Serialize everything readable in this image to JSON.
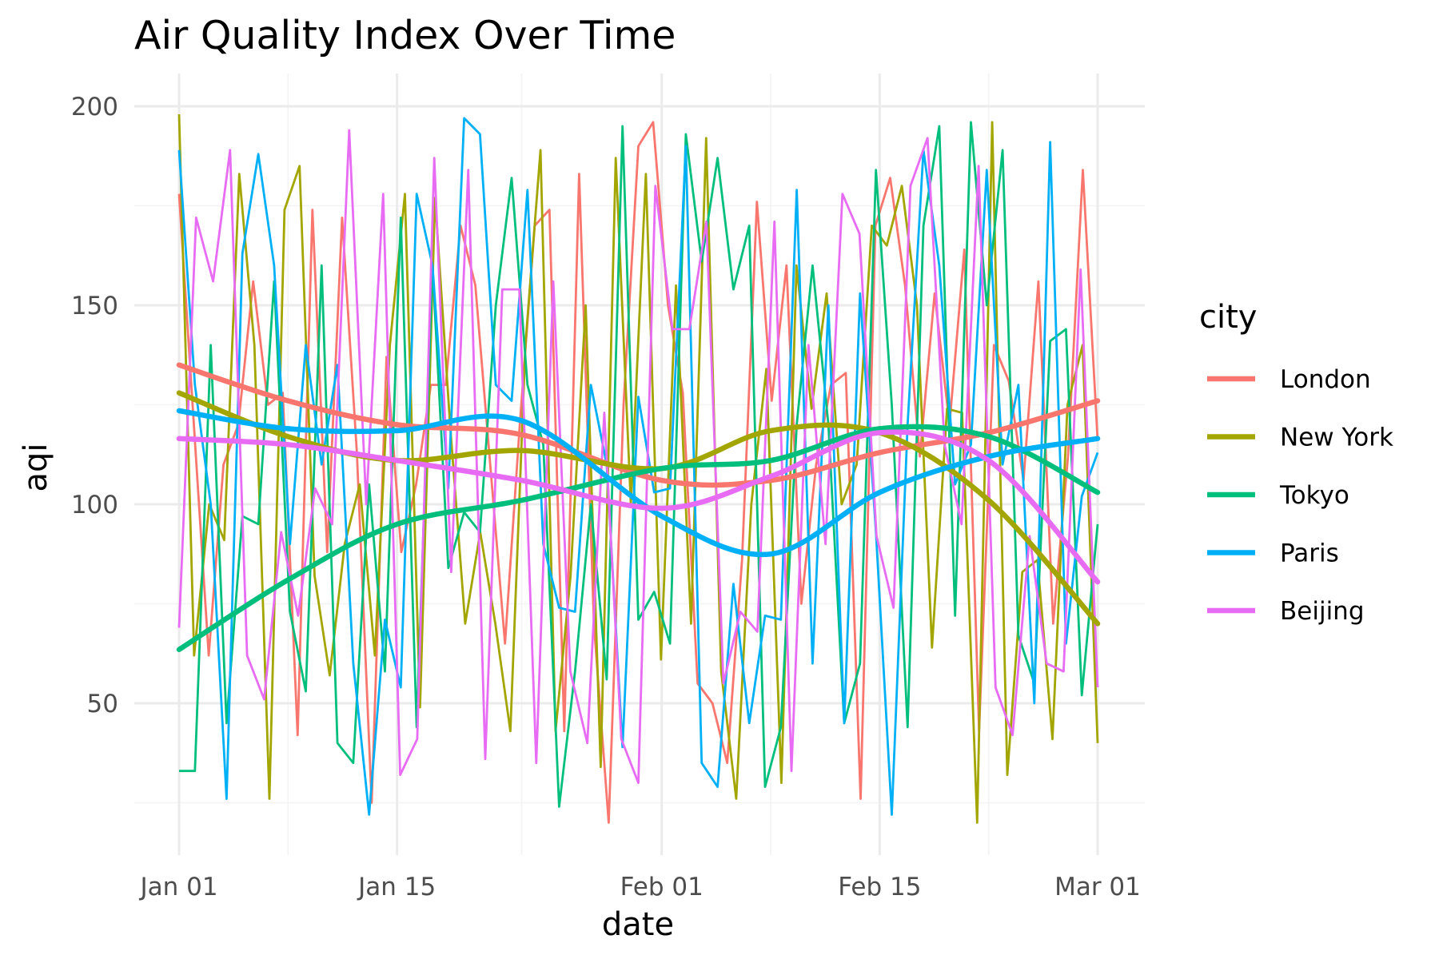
{
  "chart_data": {
    "type": "line",
    "title": "Air Quality Index Over Time",
    "xlabel": "date",
    "ylabel": "aqi",
    "x_start": "2023-01-01",
    "x_end": "2023-03-01",
    "xlim": [
      "2023-01-01",
      "2023-03-01"
    ],
    "ylim": [
      16,
      204
    ],
    "x_ticks": [
      {
        "label": "Jan 01",
        "date": "2023-01-01"
      },
      {
        "label": "Jan 15",
        "date": "2023-01-15"
      },
      {
        "label": "Feb 01",
        "date": "2023-02-01"
      },
      {
        "label": "Feb 15",
        "date": "2023-02-15"
      },
      {
        "label": "Mar 01",
        "date": "2023-03-01"
      }
    ],
    "x_minor_ticks": [
      "2023-01-08",
      "2023-01-23",
      "2023-02-08",
      "2023-02-22"
    ],
    "y_ticks": [
      50,
      100,
      150,
      200
    ],
    "y_minor_ticks": [
      25,
      75,
      125,
      175
    ],
    "grid": true,
    "legend": {
      "title": "city",
      "position": "right"
    },
    "series": [
      {
        "name": "London",
        "color": "#F8766D",
        "values": [
          178,
          120,
          62,
          110,
          120,
          156,
          125,
          128,
          42,
          174,
          88,
          172,
          113,
          25,
          137,
          88,
          105,
          130,
          130,
          170,
          155,
          110,
          65,
          120,
          170,
          174,
          43,
          183,
          70,
          20,
          125,
          190,
          196,
          150,
          128,
          55,
          50,
          35,
          86,
          176,
          126,
          160,
          75,
          110,
          130,
          133,
          26,
          170,
          182,
          155,
          112,
          153,
          120,
          164,
          43,
          140,
          131,
          106,
          156,
          70,
          112,
          184,
          116
        ],
        "smooth": [
          {
            "date": "2023-01-01",
            "value": 135
          },
          {
            "date": "2023-01-08",
            "value": 126
          },
          {
            "date": "2023-01-15",
            "value": 120
          },
          {
            "date": "2023-01-23",
            "value": 117.5
          },
          {
            "date": "2023-02-01",
            "value": 106
          },
          {
            "date": "2023-02-08",
            "value": 106
          },
          {
            "date": "2023-02-15",
            "value": 113
          },
          {
            "date": "2023-02-22",
            "value": 118
          },
          {
            "date": "2023-03-01",
            "value": 126
          }
        ]
      },
      {
        "name": "New York",
        "color": "#A3A500",
        "values": [
          198,
          62,
          100,
          91,
          183,
          140,
          26,
          174,
          185,
          82,
          57,
          90,
          105,
          62,
          140,
          178,
          49,
          177,
          120,
          70,
          93,
          70,
          43,
          140,
          189,
          43,
          82,
          150,
          34,
          187,
          100,
          183,
          61,
          155,
          70,
          192,
          58,
          26,
          100,
          134,
          30,
          160,
          124,
          153,
          100,
          110,
          170,
          165,
          180,
          150,
          64,
          124,
          123,
          20,
          196,
          32,
          83,
          86,
          41,
          125,
          140,
          40
        ],
        "smooth": [
          {
            "date": "2023-01-01",
            "value": 128
          },
          {
            "date": "2023-01-08",
            "value": 117
          },
          {
            "date": "2023-01-15",
            "value": 111
          },
          {
            "date": "2023-01-23",
            "value": 113.5
          },
          {
            "date": "2023-02-01",
            "value": 109
          },
          {
            "date": "2023-02-08",
            "value": 118.5
          },
          {
            "date": "2023-02-15",
            "value": 118
          },
          {
            "date": "2023-02-22",
            "value": 101
          },
          {
            "date": "2023-03-01",
            "value": 70
          }
        ]
      },
      {
        "name": "Tokyo",
        "color": "#00BF7D",
        "values": [
          33,
          33,
          140,
          45,
          97,
          95,
          156,
          73,
          53,
          160,
          40,
          35,
          105,
          58,
          172,
          44,
          160,
          84,
          98,
          93,
          150,
          182,
          130,
          115,
          24,
          58,
          100,
          56,
          195,
          71,
          78,
          65,
          193,
          161,
          187,
          154,
          170,
          29,
          44,
          120,
          160,
          120,
          45,
          60,
          184,
          125,
          44,
          170,
          195,
          72,
          196,
          150,
          189,
          67,
          55,
          141,
          144,
          52,
          95
        ],
        "smooth": [
          {
            "date": "2023-01-01",
            "value": 63.5
          },
          {
            "date": "2023-01-08",
            "value": 81
          },
          {
            "date": "2023-01-15",
            "value": 95
          },
          {
            "date": "2023-01-23",
            "value": 101
          },
          {
            "date": "2023-02-01",
            "value": 109
          },
          {
            "date": "2023-02-08",
            "value": 111
          },
          {
            "date": "2023-02-15",
            "value": 119
          },
          {
            "date": "2023-02-22",
            "value": 117
          },
          {
            "date": "2023-03-01",
            "value": 103
          }
        ]
      },
      {
        "name": "Paris",
        "color": "#00B0F6",
        "values": [
          189,
          130,
          100,
          26,
          163,
          188,
          160,
          90,
          140,
          110,
          135,
          60,
          22,
          71,
          54,
          178,
          160,
          104,
          197,
          193,
          130,
          126,
          179,
          90,
          74,
          73,
          130,
          110,
          39,
          127,
          103,
          104,
          190,
          35,
          29,
          80,
          45,
          72,
          71,
          179,
          60,
          150,
          45,
          153,
          93,
          22,
          120,
          189,
          160,
          105,
          115,
          184,
          110,
          130,
          50,
          191,
          65,
          102,
          113
        ],
        "smooth": [
          {
            "date": "2023-01-01",
            "value": 123.5
          },
          {
            "date": "2023-01-08",
            "value": 119
          },
          {
            "date": "2023-01-15",
            "value": 118.5
          },
          {
            "date": "2023-01-23",
            "value": 121
          },
          {
            "date": "2023-02-01",
            "value": 97
          },
          {
            "date": "2023-02-08",
            "value": 87.5
          },
          {
            "date": "2023-02-15",
            "value": 103
          },
          {
            "date": "2023-02-22",
            "value": 112
          },
          {
            "date": "2023-03-01",
            "value": 116.5
          }
        ]
      },
      {
        "name": "Beijing",
        "color": "#E76BF3",
        "values": [
          69,
          172,
          156,
          189,
          62,
          51,
          93,
          72,
          104,
          95,
          194,
          100,
          178,
          32,
          41,
          187,
          83,
          184,
          36,
          154,
          154,
          35,
          156,
          58,
          40,
          123,
          41,
          30,
          180,
          144,
          144,
          171,
          55,
          73,
          68,
          171,
          33,
          140,
          90,
          178,
          168,
          92,
          74,
          180,
          192,
          115,
          95,
          185,
          54,
          42,
          92,
          60,
          58,
          159,
          54
        ],
        "smooth": [
          {
            "date": "2023-01-01",
            "value": 116.5
          },
          {
            "date": "2023-01-08",
            "value": 115
          },
          {
            "date": "2023-01-15",
            "value": 111
          },
          {
            "date": "2023-01-23",
            "value": 106
          },
          {
            "date": "2023-02-01",
            "value": 99
          },
          {
            "date": "2023-02-08",
            "value": 107
          },
          {
            "date": "2023-02-15",
            "value": 118
          },
          {
            "date": "2023-02-22",
            "value": 111
          },
          {
            "date": "2023-03-01",
            "value": 80.5
          }
        ]
      }
    ]
  }
}
